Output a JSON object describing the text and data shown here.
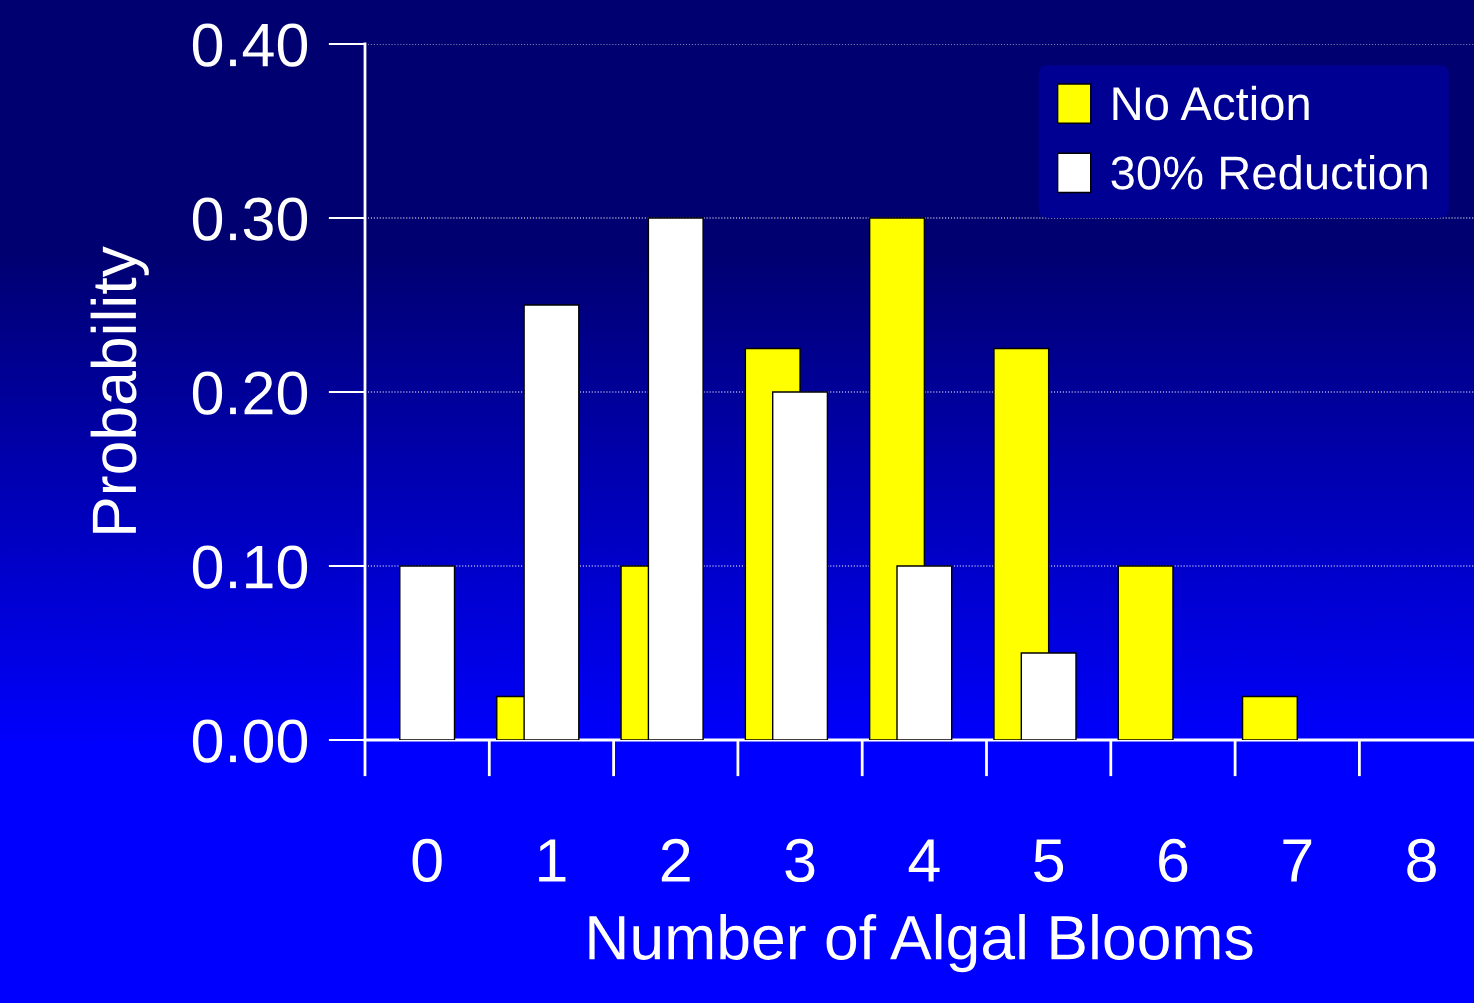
{
  "chart_data": {
    "type": "bar",
    "xlabel": "Number of Algal Blooms",
    "ylabel": "Probability",
    "categories": [
      "0",
      "1",
      "2",
      "3",
      "4",
      "5",
      "6",
      "7",
      "8"
    ],
    "series": [
      {
        "name": "No Action",
        "color": "#ffff00",
        "values": [
          0,
          0.025,
          0.1,
          0.225,
          0.3,
          0.225,
          0.1,
          0.025,
          0
        ]
      },
      {
        "name": "30% Reduction",
        "color": "#ffffff",
        "values": [
          0.1,
          0.25,
          0.3,
          0.2,
          0.1,
          0.05,
          0,
          0,
          0
        ]
      }
    ],
    "ylim": [
      0,
      0.4
    ],
    "yticks": [
      {
        "value": 0,
        "label": "0.00"
      },
      {
        "value": 0.1,
        "label": "0.10"
      },
      {
        "value": 0.2,
        "label": "0.20"
      },
      {
        "value": 0.3,
        "label": "0.30"
      },
      {
        "value": 0.4,
        "label": "0.40"
      }
    ],
    "grid": "y",
    "legend": "top right"
  }
}
